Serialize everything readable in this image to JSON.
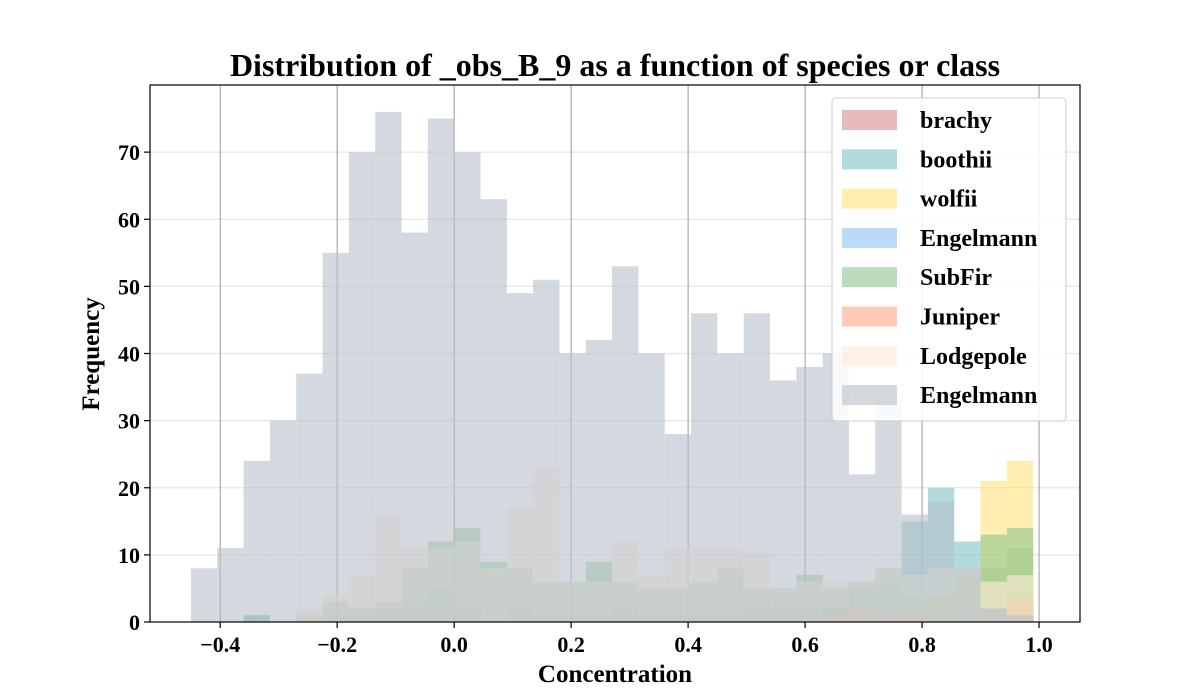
{
  "chart_data": {
    "type": "bar",
    "title": "Distribution of _obs_B_9 as a function of species or class",
    "xlabel": "Concentration",
    "ylabel": "Frequency",
    "xlim": [
      -0.52,
      1.07
    ],
    "ylim": [
      0,
      80
    ],
    "xticks": [
      -0.4,
      -0.2,
      0.0,
      0.2,
      0.4,
      0.6,
      0.8,
      1.0
    ],
    "xtick_labels": [
      "−0.4",
      "−0.2",
      "0.0",
      "0.2",
      "0.4",
      "0.6",
      "0.8",
      "1.0"
    ],
    "yticks": [
      0,
      10,
      20,
      30,
      40,
      50,
      60,
      70
    ],
    "bins": {
      "start": -0.45,
      "width": 0.045,
      "count": 32
    },
    "legend_position": "top-right",
    "series": [
      {
        "name": "brachy",
        "color": "#d98c8c",
        "opacity": 0.6,
        "values": [
          0,
          0,
          0,
          0,
          0,
          0,
          0,
          0,
          0,
          0,
          0,
          0,
          0,
          0,
          0,
          0,
          0,
          0,
          0,
          0,
          0,
          0,
          0,
          0,
          2,
          2,
          1,
          0,
          0,
          0,
          1,
          4
        ]
      },
      {
        "name": "boothii",
        "color": "#7fc4c4",
        "opacity": 0.6,
        "values": [
          0,
          0,
          1,
          0,
          0,
          1,
          2,
          2,
          3,
          5,
          2,
          0,
          2,
          1,
          1,
          1,
          2,
          1,
          1,
          1,
          1,
          3,
          2,
          2,
          2,
          5,
          6,
          15,
          20,
          12,
          8,
          11
        ]
      },
      {
        "name": "wolfii",
        "color": "#ffe27a",
        "opacity": 0.6,
        "values": [
          0,
          0,
          0,
          0,
          0,
          0,
          0,
          0,
          0,
          0,
          0,
          0,
          0,
          0,
          0,
          0,
          0,
          0,
          0,
          0,
          0,
          0,
          0,
          0,
          0,
          0,
          0,
          2,
          4,
          6,
          21,
          24
        ]
      },
      {
        "name": "Engelmann",
        "color": "#8cc1f5",
        "opacity": 0.6,
        "values": [
          0,
          0,
          0,
          0,
          0,
          0,
          0,
          0,
          0,
          0,
          0,
          0,
          0,
          0,
          0,
          0,
          0,
          0,
          0,
          0,
          0,
          0,
          0,
          0,
          0,
          0,
          0,
          0,
          0,
          1,
          2,
          1
        ]
      },
      {
        "name": "SubFir",
        "color": "#8ec78e",
        "opacity": 0.6,
        "values": [
          0,
          0,
          1,
          0,
          1,
          3,
          2,
          3,
          8,
          12,
          14,
          9,
          8,
          6,
          6,
          9,
          6,
          5,
          5,
          6,
          8,
          5,
          5,
          7,
          5,
          6,
          8,
          4,
          4,
          7,
          13,
          14
        ]
      },
      {
        "name": "Juniper",
        "color": "#ffa882",
        "opacity": 0.6,
        "values": [
          0,
          0,
          0,
          0,
          0,
          0,
          0,
          0,
          0,
          0,
          0,
          0,
          0,
          0,
          0,
          0,
          0,
          0,
          0,
          0,
          0,
          0,
          0,
          0,
          1,
          2,
          1,
          1,
          0,
          0,
          1,
          3
        ]
      },
      {
        "name": "Lodgepole",
        "color": "#fdebd6",
        "opacity": 0.6,
        "values": [
          0,
          0,
          0,
          0,
          2,
          4,
          7,
          16,
          11,
          11,
          12,
          8,
          17,
          23,
          6,
          6,
          12,
          7,
          11,
          11,
          11,
          10,
          5,
          6,
          6,
          6,
          8,
          7,
          8,
          8,
          6,
          7
        ]
      },
      {
        "name": "Engelmann",
        "color": "#b7bfcc",
        "opacity": 0.6,
        "values": [
          8,
          11,
          24,
          30,
          37,
          55,
          70,
          76,
          58,
          75,
          70,
          63,
          49,
          51,
          40,
          42,
          53,
          40,
          28,
          46,
          40,
          46,
          36,
          38,
          40,
          22,
          33,
          16,
          18,
          8,
          2,
          1
        ]
      }
    ]
  }
}
